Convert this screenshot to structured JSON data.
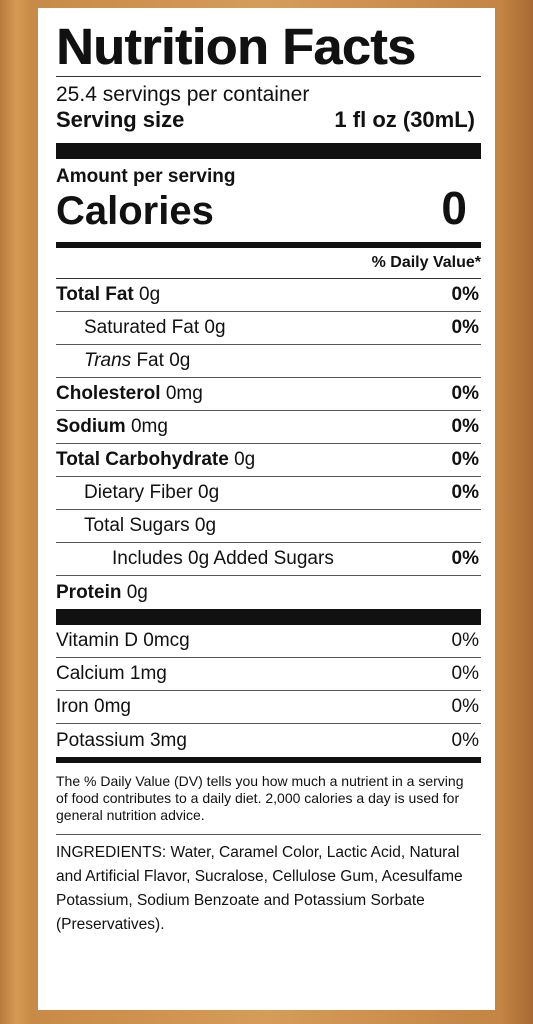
{
  "label": {
    "title": "Nutrition Facts",
    "servings_per_container": "25.4 servings per container",
    "serving_size_label": "Serving size",
    "serving_size_value": "1 fl oz (30mL)",
    "amount_per_serving": "Amount per serving",
    "calories_label": "Calories",
    "calories_value": "0",
    "daily_value_header": "% Daily Value*",
    "nutrients": [
      {
        "name": "Total Fat",
        "amount": "0g",
        "dv": "0%"
      },
      {
        "name": "Saturated Fat",
        "amount": "0g",
        "dv": "0%"
      },
      {
        "name_italic": "Trans",
        "name": "Fat",
        "amount": "0g",
        "dv": ""
      },
      {
        "name": "Cholesterol",
        "amount": "0mg",
        "dv": "0%"
      },
      {
        "name": "Sodium",
        "amount": "0mg",
        "dv": "0%"
      },
      {
        "name": "Total Carbohydrate",
        "amount": "0g",
        "dv": "0%"
      },
      {
        "name": "Dietary Fiber",
        "amount": "0g",
        "dv": "0%"
      },
      {
        "name": "Total Sugars",
        "amount": "0g",
        "dv": ""
      },
      {
        "name": "Includes 0g Added Sugars",
        "amount": "",
        "dv": "0%"
      },
      {
        "name": "Protein",
        "amount": "0g",
        "dv": ""
      }
    ],
    "vitamins": [
      {
        "text": "Vitamin D 0mcg",
        "dv": "0%"
      },
      {
        "text": "Calcium 1mg",
        "dv": "0%"
      },
      {
        "text": "Iron 0mg",
        "dv": "0%"
      },
      {
        "text": "Potassium 3mg",
        "dv": "0%"
      }
    ],
    "footnote": "The % Daily Value (DV) tells you how much a nutrient in a serving of food contributes to a daily diet. 2,000 calories a day is used for general nutrition advice.",
    "ingredients": "INGREDIENTS: Water, Caramel Color, Lactic Acid, Natural and Artificial Flavor, Sucralose, Cellulose Gum, Acesulfame Potassium, Sodium Benzoate and Potassium Sorbate (Preservatives)."
  },
  "colors": {
    "background": "#d69a55",
    "label": "#ffffff",
    "ink": "#111111"
  }
}
